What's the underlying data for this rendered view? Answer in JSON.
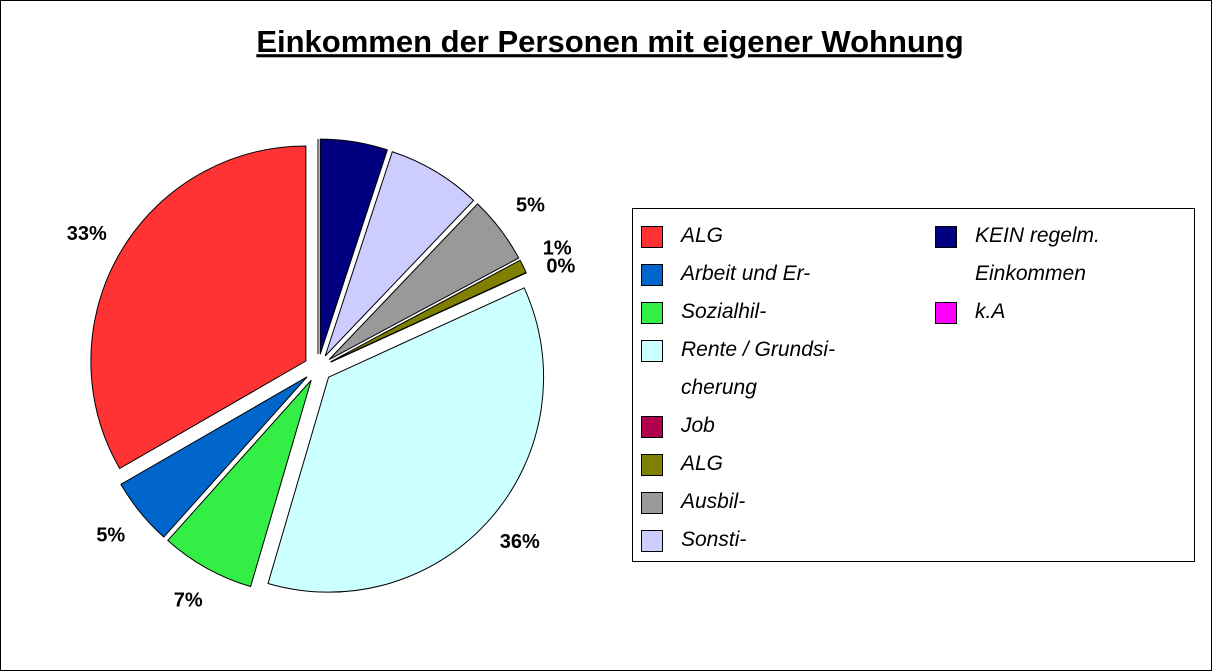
{
  "chart_data": {
    "type": "pie",
    "title": "Einkommen der Personen mit eigener Wohnung",
    "categories": [
      "ALG",
      "Arbeit und Er-",
      "Sozialhil-",
      "Rente / Grundsi-\ncherung",
      "Job",
      "ALG",
      "Ausbil-",
      "Sonsti-",
      "KEIN regelm.\nEinkommen",
      "k.A"
    ],
    "values": [
      33,
      5,
      7,
      36,
      0,
      1,
      5,
      7,
      5,
      0
    ],
    "value_labels": [
      "33%",
      "5%",
      "7%",
      "36%",
      "0%",
      "1%",
      "5%",
      null,
      null,
      null
    ],
    "colors": [
      "#ff3333",
      "#0066cc",
      "#33ee44",
      "#ccffff",
      "#b0004e",
      "#808000",
      "#999999",
      "#ccccff",
      "#000080",
      "#ff00ff"
    ],
    "legend": "right"
  }
}
